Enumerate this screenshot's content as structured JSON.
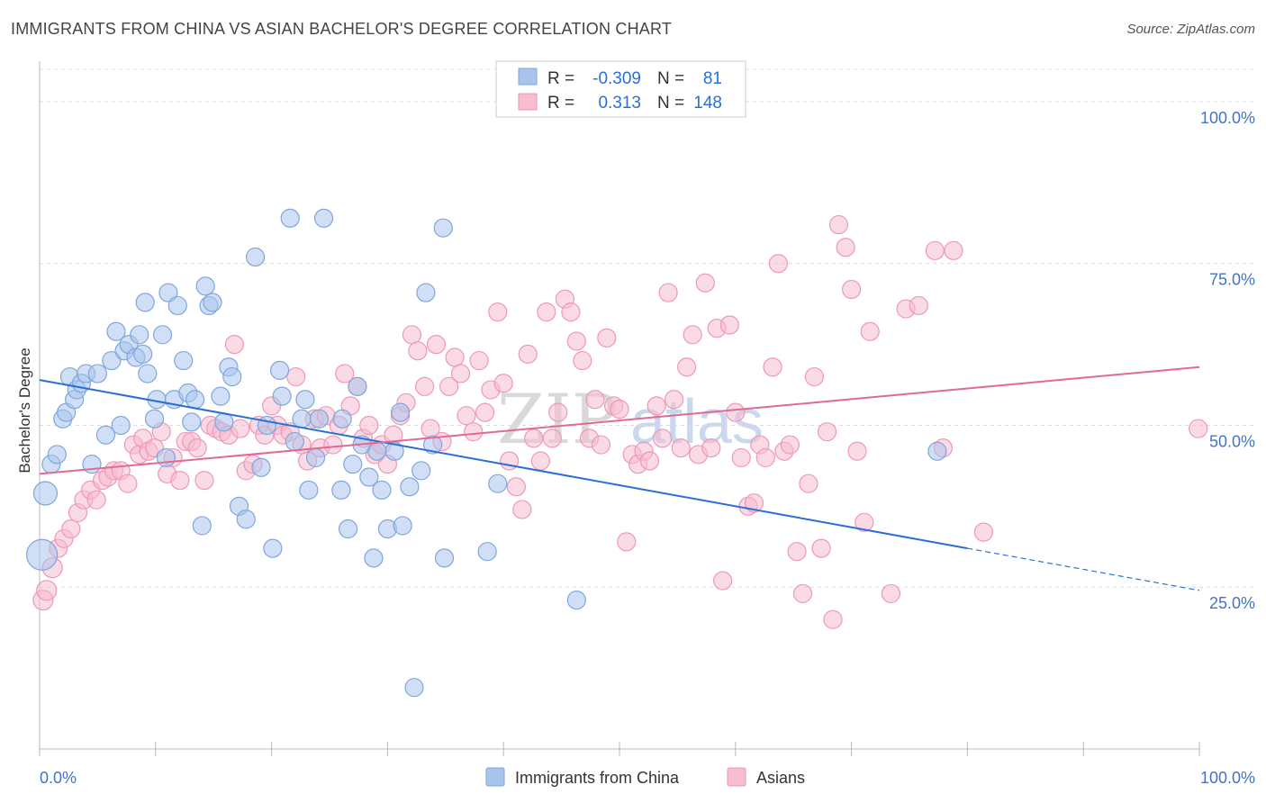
{
  "header": {
    "title": "IMMIGRANTS FROM CHINA VS ASIAN BACHELOR'S DEGREE CORRELATION CHART",
    "source": "Source: ZipAtlas.com"
  },
  "legend": {
    "rows": [
      {
        "r_label": "R =",
        "r_value": "-0.309",
        "n_label": "N =",
        "n_value": "81"
      },
      {
        "r_label": "R =",
        "r_value": "0.313",
        "n_label": "N =",
        "n_value": "148"
      }
    ]
  },
  "watermark": {
    "zip": "ZIP",
    "atlas": "atlas"
  },
  "colors": {
    "china_fill": "#a9c4ec",
    "china_stroke": "#7ea6dd",
    "china_line": "#2a6fd6",
    "asians_fill": "#f6bcd0",
    "asians_stroke": "#ee98b6",
    "asians_line": "#e06a93",
    "tick_text": "#4472c4",
    "grid": "#dcdcdc"
  },
  "chart_data": {
    "type": "scatter",
    "title": "IMMIGRANTS FROM CHINA VS ASIAN BACHELOR'S DEGREE CORRELATION CHART",
    "xlabel": "",
    "ylabel": "Bachelor's Degree",
    "xlim": [
      0,
      100
    ],
    "ylim": [
      0,
      105
    ],
    "x_tick_labels": [
      "0.0%",
      "100.0%"
    ],
    "y_ticks": [
      25,
      50,
      75,
      100
    ],
    "y_tick_labels": [
      "25.0%",
      "50.0%",
      "75.0%",
      "100.0%"
    ],
    "grid": true,
    "legend_position": "top-center",
    "series": [
      {
        "name": "Immigrants from China",
        "r": -0.309,
        "n": 81,
        "trend": {
          "x0": 0,
          "y0": 57.0,
          "x1": 80,
          "y1": 31.0,
          "dashed_to_x": 100,
          "dashed_to_y": 24.5
        },
        "points": [
          [
            0.2,
            30
          ],
          [
            0.5,
            39.5
          ],
          [
            1,
            44
          ],
          [
            1.5,
            45.5
          ],
          [
            2,
            51
          ],
          [
            2.3,
            52
          ],
          [
            2.6,
            57.5
          ],
          [
            3,
            54
          ],
          [
            3.2,
            55.5
          ],
          [
            3.6,
            56.5
          ],
          [
            4,
            58
          ],
          [
            4.5,
            44
          ],
          [
            5,
            58
          ],
          [
            5.7,
            48.5
          ],
          [
            6.2,
            60
          ],
          [
            6.6,
            64.5
          ],
          [
            7,
            50
          ],
          [
            7.3,
            61.5
          ],
          [
            7.7,
            62.5
          ],
          [
            8.3,
            60.5
          ],
          [
            8.6,
            64
          ],
          [
            8.9,
            61
          ],
          [
            9.1,
            69
          ],
          [
            9.3,
            58
          ],
          [
            9.9,
            51
          ],
          [
            10.1,
            54
          ],
          [
            10.6,
            64
          ],
          [
            10.9,
            45
          ],
          [
            11.1,
            70.5
          ],
          [
            11.6,
            54
          ],
          [
            11.9,
            68.5
          ],
          [
            12.4,
            60
          ],
          [
            12.8,
            55
          ],
          [
            13.1,
            50.5
          ],
          [
            13.4,
            54
          ],
          [
            14,
            34.5
          ],
          [
            14.3,
            71.5
          ],
          [
            14.6,
            68.5
          ],
          [
            14.9,
            69
          ],
          [
            15.6,
            54.5
          ],
          [
            15.9,
            50.5
          ],
          [
            16.3,
            59
          ],
          [
            16.6,
            57.5
          ],
          [
            17.2,
            37.5
          ],
          [
            17.8,
            35.5
          ],
          [
            18.6,
            76
          ],
          [
            19.1,
            43.5
          ],
          [
            19.6,
            50
          ],
          [
            20.1,
            31
          ],
          [
            20.7,
            58.5
          ],
          [
            20.9,
            54.5
          ],
          [
            21.6,
            82
          ],
          [
            22,
            47.5
          ],
          [
            22.6,
            51
          ],
          [
            22.9,
            54
          ],
          [
            23.2,
            40
          ],
          [
            23.8,
            45
          ],
          [
            24.1,
            51
          ],
          [
            24.5,
            82
          ],
          [
            26,
            40
          ],
          [
            26.6,
            34
          ],
          [
            27,
            44
          ],
          [
            26.1,
            51
          ],
          [
            27.4,
            56
          ],
          [
            27.8,
            47
          ],
          [
            28.4,
            42
          ],
          [
            28.8,
            29.5
          ],
          [
            29.1,
            46
          ],
          [
            29.5,
            40
          ],
          [
            30,
            34
          ],
          [
            30.6,
            46
          ],
          [
            31.1,
            52
          ],
          [
            31.3,
            34.5
          ],
          [
            31.9,
            40.5
          ],
          [
            32.3,
            9.5
          ],
          [
            32.9,
            43
          ],
          [
            33.3,
            70.5
          ],
          [
            33.9,
            47
          ],
          [
            34.8,
            80.5
          ],
          [
            34.9,
            29.5
          ],
          [
            39.5,
            41
          ],
          [
            38.6,
            30.5
          ],
          [
            46.3,
            23
          ],
          [
            77.4,
            46
          ]
        ]
      },
      {
        "name": "Asians",
        "r": 0.313,
        "n": 148,
        "trend": {
          "x0": 0,
          "y0": 42.5,
          "x1": 100,
          "y1": 59.0
        },
        "points": [
          [
            0.3,
            23
          ],
          [
            0.6,
            24.5
          ],
          [
            1.1,
            28
          ],
          [
            1.6,
            31
          ],
          [
            2.1,
            32.5
          ],
          [
            2.7,
            34
          ],
          [
            3.3,
            36.5
          ],
          [
            3.8,
            38.5
          ],
          [
            4.4,
            40
          ],
          [
            4.9,
            38.5
          ],
          [
            5.4,
            41.5
          ],
          [
            5.9,
            42
          ],
          [
            6.4,
            43
          ],
          [
            7,
            43
          ],
          [
            7.6,
            41
          ],
          [
            8.1,
            47
          ],
          [
            8.6,
            45.5
          ],
          [
            8.9,
            48
          ],
          [
            9.4,
            46
          ],
          [
            9.9,
            46.5
          ],
          [
            10.5,
            49
          ],
          [
            11,
            42.5
          ],
          [
            11.5,
            45
          ],
          [
            12.1,
            41.5
          ],
          [
            12.6,
            47.5
          ],
          [
            13.1,
            47.5
          ],
          [
            13.6,
            46.5
          ],
          [
            14.2,
            41.5
          ],
          [
            14.7,
            50
          ],
          [
            15.2,
            49.5
          ],
          [
            15.7,
            49
          ],
          [
            16.3,
            48.5
          ],
          [
            16.8,
            62.5
          ],
          [
            17.3,
            49.5
          ],
          [
            17.8,
            43
          ],
          [
            18.4,
            44
          ],
          [
            18.9,
            50
          ],
          [
            19.4,
            48.5
          ],
          [
            20,
            53
          ],
          [
            20.5,
            50
          ],
          [
            21,
            48.5
          ],
          [
            21.6,
            49
          ],
          [
            22.1,
            57.5
          ],
          [
            22.6,
            47
          ],
          [
            23.1,
            44.5
          ],
          [
            23.7,
            51
          ],
          [
            24.2,
            46.5
          ],
          [
            24.7,
            51.5
          ],
          [
            25.3,
            47
          ],
          [
            25.8,
            50
          ],
          [
            26.3,
            58
          ],
          [
            26.8,
            53
          ],
          [
            27.4,
            56
          ],
          [
            27.9,
            48
          ],
          [
            28.4,
            50
          ],
          [
            28.9,
            45.5
          ],
          [
            29.5,
            47
          ],
          [
            30,
            44
          ],
          [
            30.5,
            48.5
          ],
          [
            31.1,
            51.5
          ],
          [
            31.6,
            53.5
          ],
          [
            32.1,
            64
          ],
          [
            32.6,
            61.5
          ],
          [
            33.2,
            56
          ],
          [
            33.7,
            49.5
          ],
          [
            34.2,
            62.5
          ],
          [
            34.7,
            47.5
          ],
          [
            35.3,
            56
          ],
          [
            35.8,
            60.5
          ],
          [
            36.3,
            58
          ],
          [
            36.8,
            51.5
          ],
          [
            37.4,
            49
          ],
          [
            37.9,
            60
          ],
          [
            38.4,
            52
          ],
          [
            38.9,
            55.5
          ],
          [
            39.5,
            67.5
          ],
          [
            40,
            56.5
          ],
          [
            40.5,
            44.5
          ],
          [
            41.1,
            40.5
          ],
          [
            41.6,
            37
          ],
          [
            42.1,
            61
          ],
          [
            42.6,
            48
          ],
          [
            43.2,
            44.5
          ],
          [
            43.7,
            67.5
          ],
          [
            44.2,
            48
          ],
          [
            44.7,
            52
          ],
          [
            45.3,
            69.5
          ],
          [
            45.8,
            67.5
          ],
          [
            46.3,
            63
          ],
          [
            46.8,
            60
          ],
          [
            47.4,
            48
          ],
          [
            47.9,
            54
          ],
          [
            48.4,
            47
          ],
          [
            48.9,
            63.5
          ],
          [
            49.5,
            53
          ],
          [
            50,
            52.5
          ],
          [
            50.6,
            32
          ],
          [
            51.1,
            45.5
          ],
          [
            51.6,
            44
          ],
          [
            52.1,
            46
          ],
          [
            52.6,
            44.5
          ],
          [
            53.2,
            53
          ],
          [
            53.7,
            48
          ],
          [
            54.2,
            70.5
          ],
          [
            54.7,
            54
          ],
          [
            55.3,
            46.5
          ],
          [
            55.8,
            59
          ],
          [
            56.3,
            64
          ],
          [
            56.8,
            45.5
          ],
          [
            57.4,
            72
          ],
          [
            57.9,
            46.5
          ],
          [
            58.4,
            65
          ],
          [
            58.9,
            26
          ],
          [
            59.5,
            65.5
          ],
          [
            60,
            52
          ],
          [
            60.5,
            45
          ],
          [
            61.1,
            37.5
          ],
          [
            61.6,
            38
          ],
          [
            62.1,
            47
          ],
          [
            62.6,
            45
          ],
          [
            63.2,
            59
          ],
          [
            63.7,
            75
          ],
          [
            64.2,
            46
          ],
          [
            64.7,
            47
          ],
          [
            65.3,
            30.5
          ],
          [
            65.8,
            24
          ],
          [
            66.3,
            41
          ],
          [
            66.8,
            57.5
          ],
          [
            67.4,
            31
          ],
          [
            67.9,
            49
          ],
          [
            68.4,
            20
          ],
          [
            68.9,
            81
          ],
          [
            69.5,
            77.5
          ],
          [
            70,
            71
          ],
          [
            70.5,
            46
          ],
          [
            71.1,
            35
          ],
          [
            71.6,
            64.5
          ],
          [
            73.4,
            24
          ],
          [
            74.7,
            68
          ],
          [
            75.8,
            68.5
          ],
          [
            77.2,
            77
          ],
          [
            78.8,
            77
          ],
          [
            81.4,
            33.5
          ],
          [
            77.9,
            46.5
          ],
          [
            99.9,
            49.5
          ]
        ]
      }
    ]
  },
  "bottom_legend": {
    "items": [
      {
        "label": "Immigrants from China"
      },
      {
        "label": "Asians"
      }
    ]
  }
}
